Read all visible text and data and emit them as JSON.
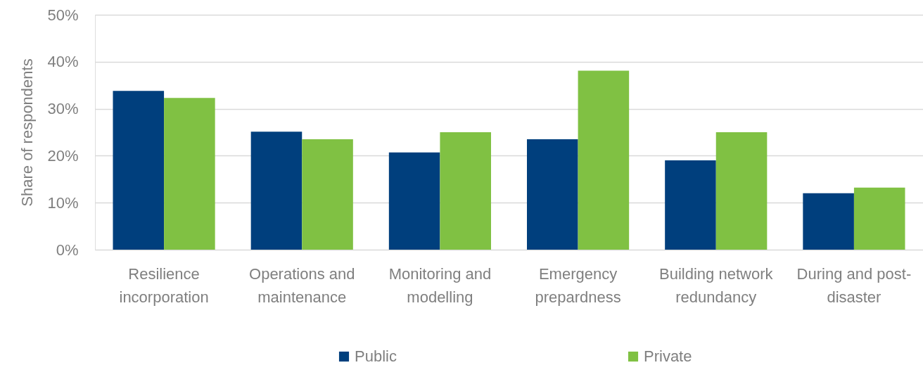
{
  "chart_data": {
    "type": "bar",
    "ylabel": "Share of respondents",
    "categories": [
      "Resilience incorporation",
      "Operations and maintenance",
      "Monitoring and modelling",
      "Emergency prepardness",
      "Building network redundancy",
      "During and post-disaster"
    ],
    "series": [
      {
        "name": "Public",
        "color": "#003f7d",
        "values": [
          33.8,
          25.1,
          20.7,
          23.5,
          19.0,
          12.0
        ]
      },
      {
        "name": "Private",
        "color": "#80c143",
        "values": [
          32.3,
          23.5,
          25.0,
          38.1,
          25.0,
          13.2
        ]
      }
    ],
    "ylim": [
      0,
      50
    ],
    "yticks": [
      {
        "value": 0,
        "label": "0%"
      },
      {
        "value": 10,
        "label": "10%"
      },
      {
        "value": 20,
        "label": "20%"
      },
      {
        "value": 30,
        "label": "30%"
      },
      {
        "value": 40,
        "label": "40%"
      },
      {
        "value": 50,
        "label": "50%"
      }
    ],
    "grid": "y",
    "legend": "bottom"
  }
}
